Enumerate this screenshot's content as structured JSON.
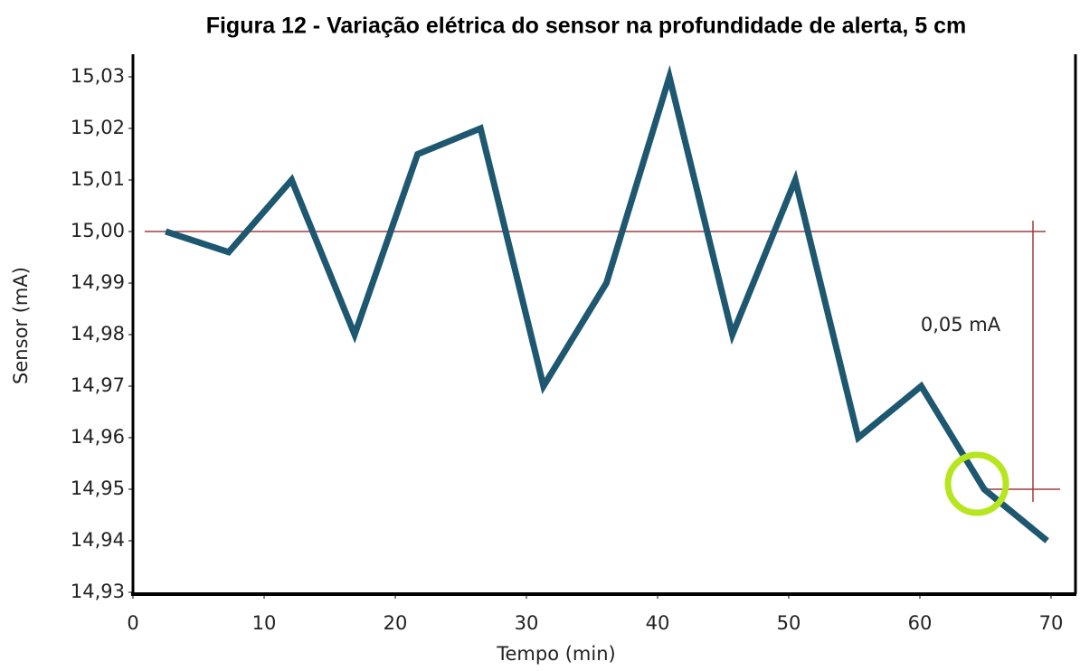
{
  "chart_data": {
    "type": "line",
    "title": "Figura 12 - Variação elétrica do sensor na profundidade de alerta, 5 cm",
    "x_label": "Tempo (min)",
    "y_label": "Sensor (mA)",
    "x": [
      2.5,
      7.3,
      12.1,
      16.9,
      21.7,
      26.5,
      31.3,
      36.1,
      40.9,
      45.7,
      50.5,
      55.3,
      60.1,
      64.9,
      69.7
    ],
    "series": [
      {
        "name": "Sensor",
        "color": "#1d5770",
        "values": [
          15.0,
          14.996,
          15.01,
          14.98,
          15.015,
          15.02,
          14.97,
          14.99,
          15.03,
          14.98,
          15.01,
          14.96,
          14.97,
          14.95,
          14.94
        ]
      }
    ],
    "xlim": [
      0,
      70
    ],
    "xticks": [
      0,
      10,
      20,
      30,
      40,
      50,
      60,
      70
    ],
    "ylim": [
      14.93,
      15.03
    ],
    "yticks": [
      {
        "value": 14.93,
        "label": "14,93"
      },
      {
        "value": 14.94,
        "label": "14,94"
      },
      {
        "value": 14.95,
        "label": "14,95"
      },
      {
        "value": 14.96,
        "label": "14,96"
      },
      {
        "value": 14.97,
        "label": "14,97"
      },
      {
        "value": 14.98,
        "label": "14,98"
      },
      {
        "value": 14.99,
        "label": "14,99"
      },
      {
        "value": 15.0,
        "label": "15,00"
      },
      {
        "value": 15.01,
        "label": "15,01"
      },
      {
        "value": 15.02,
        "label": "15,02"
      },
      {
        "value": 15.03,
        "label": "15,03"
      }
    ],
    "reference_lines": [
      15.0,
      14.95
    ],
    "reference_color": "#a03c3c",
    "annotation": "0,05 mA",
    "highlight_color": "#b6e61e"
  }
}
